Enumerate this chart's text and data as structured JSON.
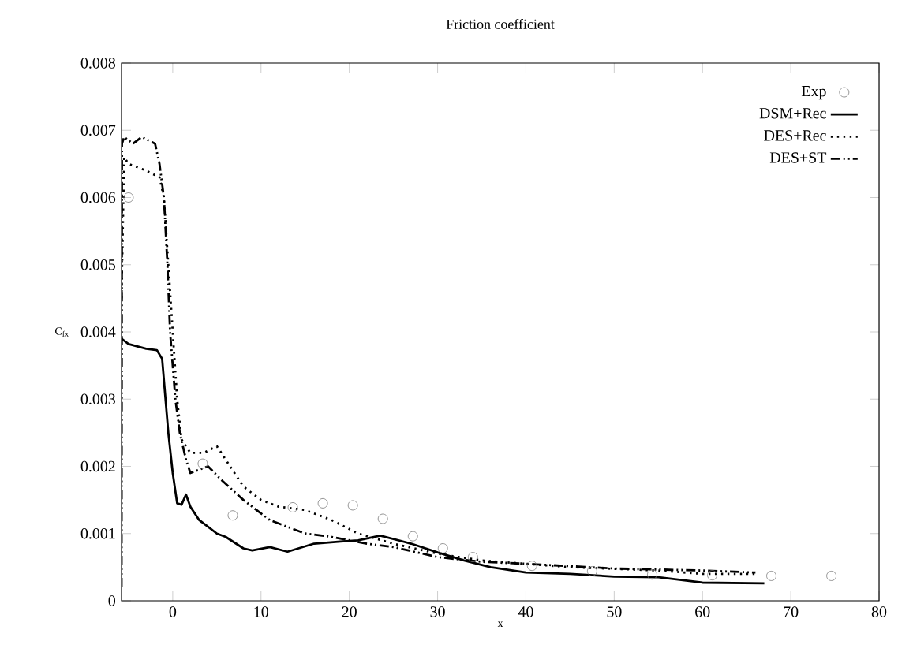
{
  "chart_data": {
    "type": "line",
    "title": "Friction coefficient",
    "xlabel": "x",
    "ylabel": "C$_{fx}$",
    "xlim": [
      -5.8,
      80
    ],
    "xticks": [
      0,
      10,
      20,
      30,
      40,
      50,
      60,
      70,
      80
    ],
    "ylim": [
      0,
      0.008
    ],
    "yticks": [
      0,
      0.001,
      0.002,
      0.003,
      0.004,
      0.005,
      0.006,
      0.007,
      0.008
    ],
    "legend": "top right",
    "grid": false,
    "series": [
      {
        "name": "Exp",
        "type": "scatter",
        "marker": "circle",
        "color": "#777777",
        "x": [
          -5,
          3.4,
          6.8,
          13.6,
          17.0,
          20.4,
          23.8,
          27.2,
          30.6,
          34.0,
          40.7,
          47.5,
          54.3,
          61.1,
          67.8,
          74.6
        ],
        "values": [
          0.006,
          0.00204,
          0.00127,
          0.00139,
          0.00145,
          0.00142,
          0.00122,
          0.00096,
          0.00078,
          0.00065,
          0.00052,
          0.00044,
          0.00039,
          0.00038,
          0.00037,
          0.00037
        ]
      },
      {
        "name": "DSM+Rec",
        "line_style": "solid",
        "color": "#000000",
        "x": [
          -5.8,
          -5,
          -3,
          -1.8,
          -1.2,
          -0.5,
          0,
          0.5,
          1,
          1.5,
          2,
          3,
          4,
          5,
          6,
          8,
          9,
          11,
          13,
          16,
          19,
          21,
          23.5,
          27,
          30,
          33,
          36,
          40,
          45,
          50,
          55,
          60,
          67
        ],
        "values": [
          0.0039,
          0.00382,
          0.00375,
          0.00373,
          0.0036,
          0.0025,
          0.0019,
          0.00145,
          0.00143,
          0.00158,
          0.0014,
          0.0012,
          0.0011,
          0.001,
          0.00095,
          0.00078,
          0.00075,
          0.0008,
          0.00073,
          0.00085,
          0.00088,
          0.0009,
          0.00097,
          0.00085,
          0.00072,
          0.0006,
          0.0005,
          0.00042,
          0.0004,
          0.00036,
          0.00035,
          0.00027,
          0.00026
        ]
      },
      {
        "name": "DES+Rec",
        "line_style": "dotted",
        "color": "#000000",
        "x": [
          -5.8,
          -5.5,
          -5,
          -3,
          -1.5,
          -1,
          -0.5,
          0,
          0.5,
          1,
          2,
          3.5,
          5,
          6,
          8,
          10,
          12,
          15,
          18,
          21,
          25,
          30,
          35,
          40,
          45,
          55,
          60,
          66
        ],
        "values": [
          0.0045,
          0.0066,
          0.0065,
          0.0064,
          0.0063,
          0.006,
          0.005,
          0.004,
          0.003,
          0.0024,
          0.0022,
          0.0022,
          0.0023,
          0.0021,
          0.0017,
          0.0015,
          0.0014,
          0.00135,
          0.0012,
          0.001,
          0.00085,
          0.0007,
          0.0006,
          0.00055,
          0.0005,
          0.00045,
          0.0004,
          0.0004
        ]
      },
      {
        "name": "DES+ST",
        "line_style": "dashdotdotted",
        "color": "#000000",
        "x": [
          -5.8,
          -5.75,
          -5.5,
          -4.5,
          -3.5,
          -2,
          -1.5,
          -1,
          -0.6,
          -0.3,
          0.3,
          0.8,
          1.5,
          2,
          3,
          4,
          5.5,
          8,
          11,
          15,
          18,
          22,
          25,
          30,
          35,
          40,
          50,
          60,
          66
        ],
        "values": [
          0.0002,
          0.0068,
          0.0069,
          0.0068,
          0.0069,
          0.0068,
          0.0065,
          0.006,
          0.005,
          0.004,
          0.003,
          0.0025,
          0.0021,
          0.0019,
          0.00195,
          0.002,
          0.0018,
          0.0015,
          0.0012,
          0.001,
          0.00095,
          0.00085,
          0.0008,
          0.00065,
          0.00058,
          0.00055,
          0.00048,
          0.00045,
          0.00042
        ]
      }
    ]
  }
}
